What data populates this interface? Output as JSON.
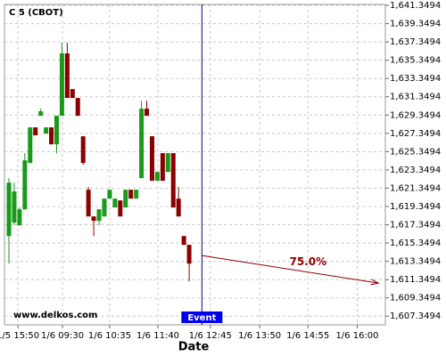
{
  "chart_data": {
    "type": "candlestick",
    "title": "C 5 (CBOT)",
    "watermark": "www.delkos.com",
    "x_label": "Date",
    "up_color": "#1a9a1a",
    "down_color": "#8b0000",
    "grid": true,
    "x": [
      0,
      1,
      2,
      3,
      4,
      5,
      6,
      7,
      8,
      9,
      10,
      11,
      12,
      13,
      14,
      15,
      16,
      17,
      18,
      19,
      20,
      21,
      22,
      23,
      24,
      25,
      26,
      27,
      28,
      29,
      30,
      31,
      32,
      33,
      34
    ],
    "open": [
      1616.12,
      1617.58,
      1617.29,
      1619.04,
      1624.11,
      1628.0,
      1629.27,
      1627.32,
      1628.0,
      1626.15,
      1629.27,
      1636.09,
      1632.19,
      1631.22,
      1627.03,
      1621.18,
      1618.26,
      1617.78,
      1618.26,
      1620.21,
      1619.24,
      1620.01,
      1619.24,
      1621.18,
      1620.21,
      1622.45,
      1630.05,
      1627.03,
      1622.16,
      1625.18,
      1623.13,
      1625.18,
      1620.21,
      1616.12,
      1615.15
    ],
    "high": [
      1622.45,
      1621.96,
      1619.24,
      1625.18,
      1628.0,
      1628.0,
      1630.05,
      1628.0,
      1628.0,
      1629.27,
      1637.26,
      1637.26,
      1632.19,
      1631.22,
      1627.03,
      1621.47,
      1618.26,
      1619.04,
      1620.21,
      1621.18,
      1620.21,
      1620.01,
      1621.18,
      1621.18,
      1621.18,
      1630.92,
      1630.92,
      1627.03,
      1623.13,
      1625.18,
      1625.18,
      1625.18,
      1621.47,
      1616.12,
      1615.15
    ],
    "low": [
      1613.1,
      1617.29,
      1617.29,
      1619.04,
      1624.11,
      1627.13,
      1629.27,
      1627.32,
      1626.15,
      1625.18,
      1629.27,
      1631.22,
      1631.22,
      1629.27,
      1623.91,
      1618.26,
      1616.12,
      1617.29,
      1618.26,
      1620.21,
      1619.24,
      1618.26,
      1619.24,
      1620.21,
      1620.21,
      1622.45,
      1629.27,
      1622.16,
      1622.16,
      1622.16,
      1623.13,
      1619.24,
      1618.26,
      1615.15,
      1611.15
    ],
    "close": [
      1621.96,
      1620.99,
      1619.04,
      1624.4,
      1628.0,
      1627.13,
      1629.76,
      1628.0,
      1626.15,
      1629.27,
      1636.09,
      1631.22,
      1631.22,
      1629.27,
      1624.11,
      1618.26,
      1617.78,
      1619.04,
      1620.21,
      1621.18,
      1620.21,
      1618.26,
      1621.18,
      1620.21,
      1621.18,
      1630.05,
      1629.27,
      1622.16,
      1623.13,
      1622.16,
      1625.18,
      1619.24,
      1618.26,
      1615.15,
      1613.1
    ],
    "xlim": [
      -0.84,
      71.0
    ],
    "xticks": [
      {
        "value": 1.7,
        "label": "1/5 15:50"
      },
      {
        "value": 10.1,
        "label": "1/6 09:30"
      },
      {
        "value": 19,
        "label": "1/6 10:35"
      },
      {
        "value": 28.1,
        "label": "1/6 11:40"
      },
      {
        "value": 38,
        "label": "1/6 12:45"
      },
      {
        "value": 47.3,
        "label": "1/6 13:50"
      },
      {
        "value": 56.4,
        "label": "1/6 14:55"
      },
      {
        "value": 65.7,
        "label": "1/6 16:00"
      }
    ],
    "ylim": [
      1606.4,
      1641.45
    ],
    "yticks": [
      {
        "value": 1607.3494,
        "label": "1,607.3494"
      },
      {
        "value": 1609.3494,
        "label": "1,609.3494"
      },
      {
        "value": 1611.3494,
        "label": "1,611.3494"
      },
      {
        "value": 1613.3494,
        "label": "1,613.3494"
      },
      {
        "value": 1615.3494,
        "label": "1,615.3494"
      },
      {
        "value": 1617.3494,
        "label": "1,617.3494"
      },
      {
        "value": 1619.3494,
        "label": "1,619.3494"
      },
      {
        "value": 1621.3494,
        "label": "1,621.3494"
      },
      {
        "value": 1623.3494,
        "label": "1,623.3494"
      },
      {
        "value": 1625.3494,
        "label": "1,625.3494"
      },
      {
        "value": 1627.3494,
        "label": "1,627.3494"
      },
      {
        "value": 1629.3494,
        "label": "1,629.3494"
      },
      {
        "value": 1631.3494,
        "label": "1,631.3494"
      },
      {
        "value": 1633.3494,
        "label": "1,633.3494"
      },
      {
        "value": 1635.3494,
        "label": "1,635.3494"
      },
      {
        "value": 1637.3494,
        "label": "1,637.3494"
      },
      {
        "value": 1639.3494,
        "label": "1,639.3494"
      },
      {
        "value": 1641.3494,
        "label": "1,641.3494"
      }
    ],
    "event": {
      "label": "Event",
      "x": 36.4,
      "color": "#000080"
    },
    "arrow": {
      "x": [
        36.4,
        69.7
      ],
      "y": [
        1613.98,
        1610.96
      ],
      "label": "75.0%",
      "color": "#8b0000"
    }
  }
}
